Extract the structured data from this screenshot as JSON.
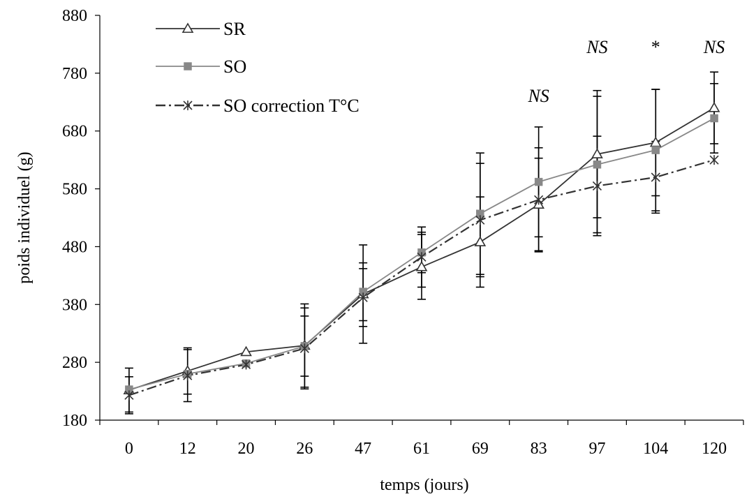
{
  "chart_data": {
    "type": "line",
    "xlabel": "temps (jours)",
    "ylabel": "poids individuel (g)",
    "ylim": [
      180,
      880
    ],
    "yticks": [
      180,
      280,
      380,
      480,
      580,
      680,
      780,
      880
    ],
    "categories": [
      "0",
      "12",
      "20",
      "26",
      "47",
      "61",
      "69",
      "83",
      "97",
      "104",
      "120"
    ],
    "grid": false,
    "legend_position": "top-left",
    "series": [
      {
        "name": "SR",
        "color": "#333333",
        "line_style": "solid",
        "marker": "triangle-open",
        "values": [
          232,
          265,
          298,
          309,
          398,
          445,
          488,
          553,
          640,
          660,
          720
        ],
        "error": [
          38,
          40,
          null,
          72,
          85,
          56,
          78,
          80,
          110,
          92,
          62
        ]
      },
      {
        "name": "SO",
        "color": "#888888",
        "line_style": "solid",
        "marker": "square-filled",
        "values": [
          233,
          260,
          278,
          308,
          402,
          470,
          537,
          592,
          622,
          647,
          702
        ],
        "error": [
          null,
          null,
          null,
          52,
          50,
          35,
          105,
          95,
          118,
          105,
          60
        ]
      },
      {
        "name": "SO correction T°C",
        "color": "#333333",
        "line_style": "dash-dot",
        "marker": "asterisk",
        "values": [
          223,
          257,
          276,
          304,
          392,
          462,
          526,
          561,
          585,
          600,
          630
        ],
        "error": [
          32,
          45,
          null,
          70,
          50,
          52,
          98,
          90,
          86,
          62,
          null
        ]
      }
    ],
    "annotations": [
      {
        "text": "NS",
        "category": "83",
        "style": "italic"
      },
      {
        "text": "NS",
        "category": "97",
        "style": "italic"
      },
      {
        "text": "*",
        "category": "104",
        "style": "normal"
      },
      {
        "text": "NS",
        "category": "120",
        "style": "italic"
      }
    ]
  }
}
